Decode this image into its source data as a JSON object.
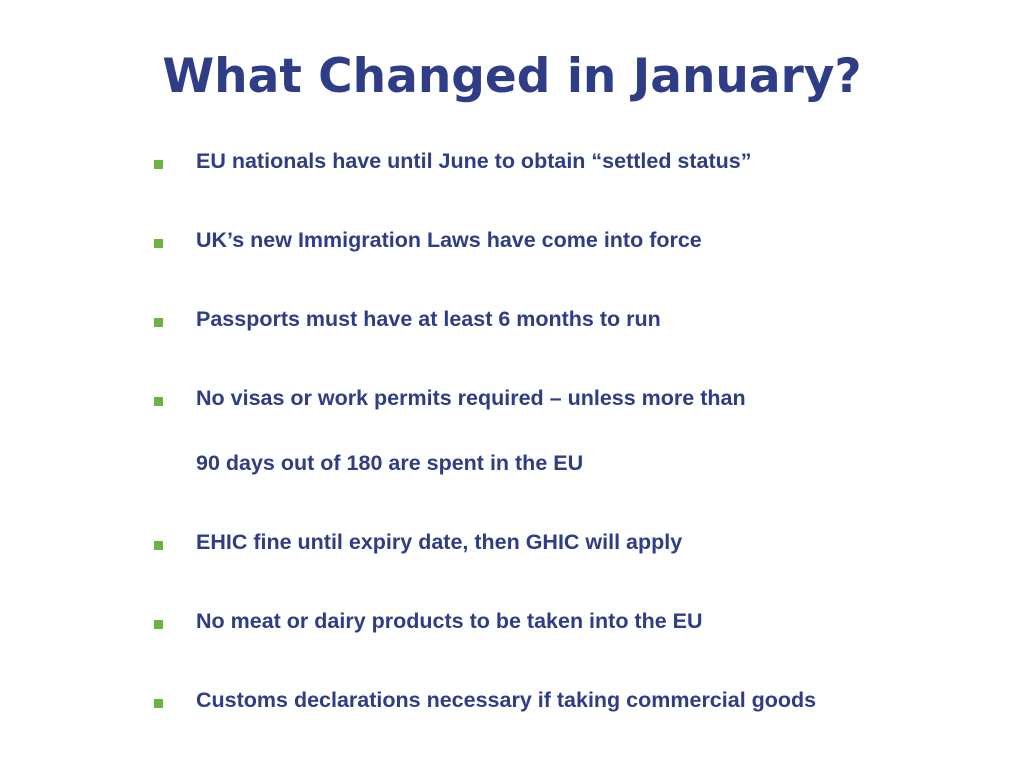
{
  "slide": {
    "title": "What Changed in January?",
    "bullets": [
      {
        "lines": [
          "EU nationals have until June to obtain “settled status”"
        ]
      },
      {
        "lines": [
          "UK’s new Immigration Laws have come into force"
        ]
      },
      {
        "lines": [
          "Passports must have at least 6 months to run"
        ]
      },
      {
        "lines": [
          "No visas or work permits required – unless more than",
          "90 days out of 180 are spent in the EU"
        ]
      },
      {
        "lines": [
          "EHIC fine until expiry date, then GHIC will apply"
        ]
      },
      {
        "lines": [
          "No meat or dairy products to be taken into the EU"
        ]
      },
      {
        "lines": [
          "Customs declarations necessary if taking commercial goods"
        ]
      }
    ]
  },
  "colors": {
    "title": "#2e3d86",
    "text": "#2e3d86",
    "bullet_marker": "#6cb33f",
    "background": "#ffffff"
  }
}
